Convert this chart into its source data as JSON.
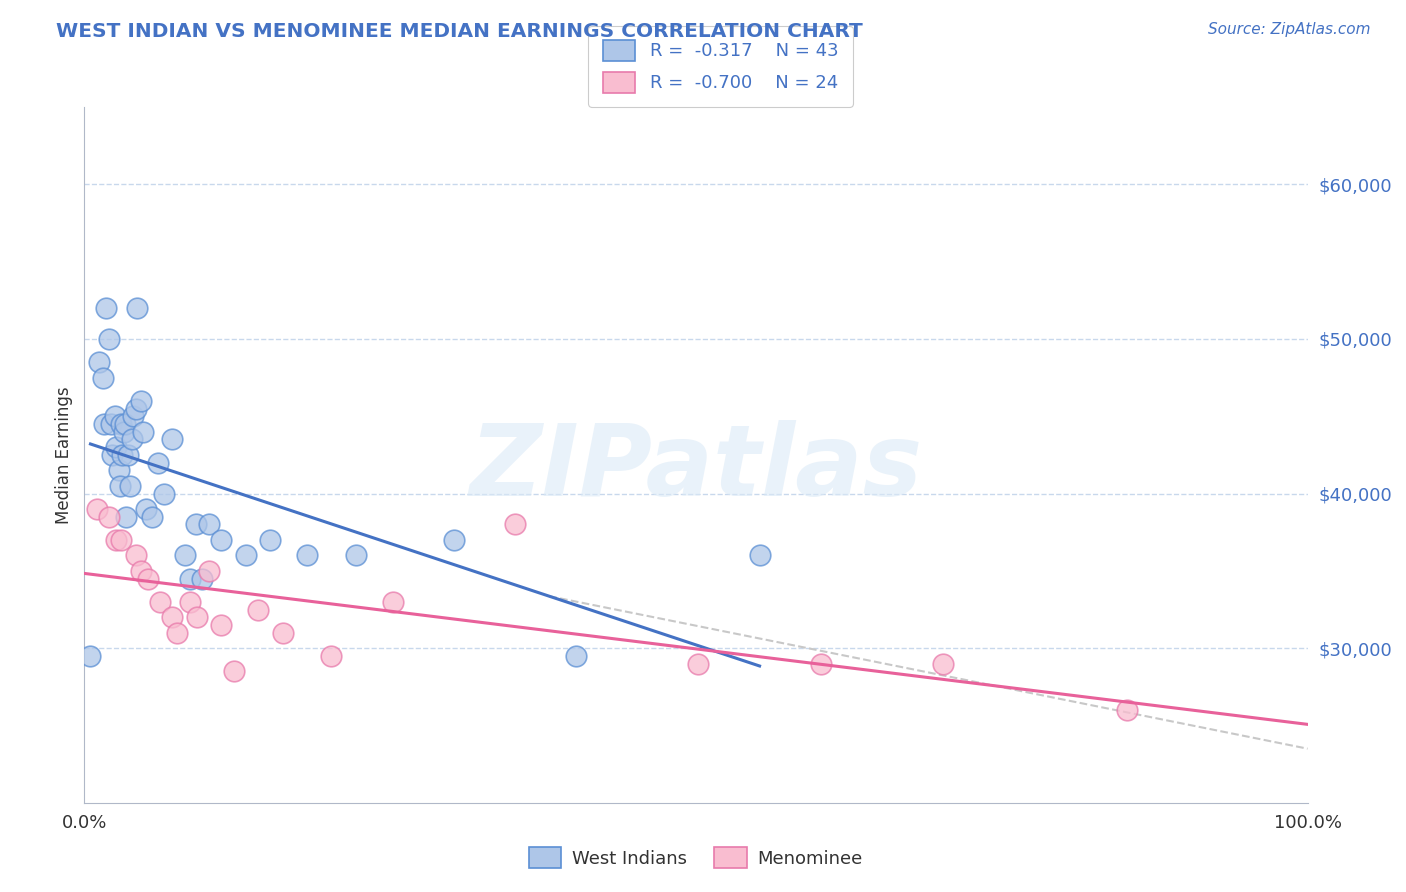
{
  "title": "WEST INDIAN VS MENOMINEE MEDIAN EARNINGS CORRELATION CHART",
  "source": "Source: ZipAtlas.com",
  "ylabel": "Median Earnings",
  "xlim": [
    0.0,
    1.0
  ],
  "ylim": [
    20000,
    65000
  ],
  "y_tick_values": [
    30000,
    40000,
    50000,
    60000
  ],
  "y_tick_labels": [
    "$30,000",
    "$40,000",
    "$50,000",
    "$60,000"
  ],
  "legend_labels": [
    "West Indians",
    "Menominee"
  ],
  "west_indian_R": "-0.317",
  "west_indian_N": "43",
  "menominee_R": "-0.700",
  "menominee_N": "24",
  "west_indian_color": "#aec6e8",
  "west_indian_edge_color": "#5b8fd4",
  "west_indian_line_color": "#4472c4",
  "menominee_color": "#f9bdd0",
  "menominee_edge_color": "#e87aab",
  "menominee_line_color": "#e8619a",
  "diagonal_line_color": "#c8c8c8",
  "background_color": "#ffffff",
  "grid_color": "#c8d8ec",
  "title_color": "#4472c4",
  "source_color": "#4472c4",
  "legend_text_color": "#4472c4",
  "watermark": "ZIPatlas",
  "west_indian_x": [
    0.005,
    0.012,
    0.015,
    0.016,
    0.018,
    0.02,
    0.022,
    0.023,
    0.025,
    0.026,
    0.028,
    0.029,
    0.03,
    0.031,
    0.032,
    0.033,
    0.034,
    0.036,
    0.037,
    0.039,
    0.04,
    0.042,
    0.043,
    0.046,
    0.048,
    0.05,
    0.055,
    0.06,
    0.065,
    0.072,
    0.082,
    0.086,
    0.091,
    0.096,
    0.102,
    0.112,
    0.132,
    0.152,
    0.182,
    0.222,
    0.302,
    0.402,
    0.552
  ],
  "west_indian_y": [
    29500,
    48500,
    47500,
    44500,
    52000,
    50000,
    44500,
    42500,
    45000,
    43000,
    41500,
    40500,
    44500,
    42500,
    44000,
    44500,
    38500,
    42500,
    40500,
    43500,
    45000,
    45500,
    52000,
    46000,
    44000,
    39000,
    38500,
    42000,
    40000,
    43500,
    36000,
    34500,
    38000,
    34500,
    38000,
    37000,
    36000,
    37000,
    36000,
    36000,
    37000,
    29500,
    36000
  ],
  "menominee_x": [
    0.01,
    0.02,
    0.026,
    0.03,
    0.042,
    0.046,
    0.052,
    0.062,
    0.072,
    0.076,
    0.086,
    0.092,
    0.102,
    0.112,
    0.122,
    0.142,
    0.162,
    0.202,
    0.252,
    0.352,
    0.502,
    0.602,
    0.702,
    0.852
  ],
  "menominee_y": [
    39000,
    38500,
    37000,
    37000,
    36000,
    35000,
    34500,
    33000,
    32000,
    31000,
    33000,
    32000,
    35000,
    31500,
    28500,
    32500,
    31000,
    29500,
    33000,
    38000,
    29000,
    29000,
    29000,
    26000
  ],
  "figsize": [
    14.06,
    8.92
  ],
  "dpi": 100
}
